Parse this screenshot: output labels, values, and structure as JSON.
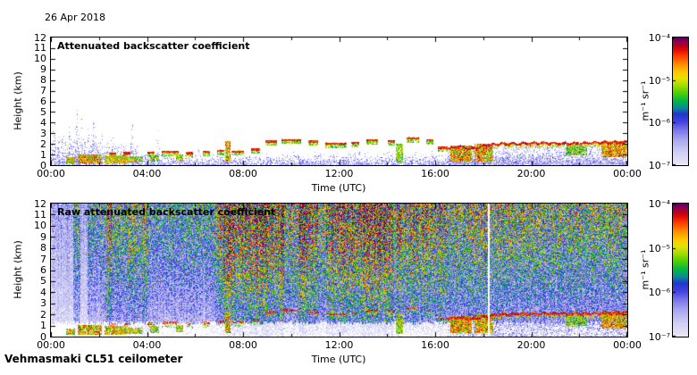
{
  "page": {
    "date": "26 Apr 2018",
    "footer": "Vehmasmaki CL51 ceilometer",
    "background": "#ffffff"
  },
  "panels": [
    {
      "title": "Attenuated backscatter coefficient"
    },
    {
      "title": "Raw attenuated backscatter coefficient"
    }
  ],
  "axes": {
    "xlabel": "Time (UTC)",
    "ylabel": "Height (km)",
    "x_ticks": [
      "00:00",
      "04:00",
      "08:00",
      "12:00",
      "16:00",
      "20:00",
      "00:00"
    ],
    "y_ticks": [
      "12",
      "11",
      "10",
      "9",
      "8",
      "7",
      "6",
      "5",
      "4",
      "3",
      "2",
      "1",
      "0"
    ],
    "x_range_hours": [
      0,
      24
    ],
    "y_range_km": [
      0,
      12
    ],
    "x_major_step_h": 4,
    "x_minor_step_h": 2
  },
  "colorbar": {
    "unit": "m⁻¹ sr⁻¹",
    "tick_labels": [
      "10⁻⁴",
      "10⁻⁵",
      "10⁻⁶",
      "10⁻⁷"
    ],
    "scale": "log10",
    "value_range": [
      1e-07,
      0.0001
    ],
    "gradient": [
      [
        0.0,
        "#eae8f8"
      ],
      [
        0.1,
        "#d0cef4"
      ],
      [
        0.2,
        "#a8a6ee"
      ],
      [
        0.28,
        "#7472e8"
      ],
      [
        0.34,
        "#4242e2"
      ],
      [
        0.4,
        "#2038cc"
      ],
      [
        0.45,
        "#0a8c96"
      ],
      [
        0.5,
        "#00b44a"
      ],
      [
        0.57,
        "#52d200"
      ],
      [
        0.63,
        "#aadc00"
      ],
      [
        0.68,
        "#e6e200"
      ],
      [
        0.73,
        "#ffc800"
      ],
      [
        0.79,
        "#ff9000"
      ],
      [
        0.85,
        "#ff4600"
      ],
      [
        0.9,
        "#e60e00"
      ],
      [
        0.94,
        "#b4001e"
      ],
      [
        0.97,
        "#8c0050"
      ],
      [
        1.0,
        "#5e0062"
      ]
    ]
  },
  "chart_data": [
    {
      "type": "heatmap",
      "title": "Attenuated backscatter coefficient",
      "xlabel": "Time (UTC)",
      "ylabel": "Height (km)",
      "x_range_hours": [
        0,
        24
      ],
      "y_range_km": [
        0,
        12
      ],
      "z_unit": "m-1 sr-1",
      "z_scale": "log10",
      "z_range": [
        1e-07,
        0.0001
      ],
      "background_value": "white below 1e-7",
      "near_surface_noise_top_km": [
        [
          0,
          2.6
        ],
        [
          2,
          2.6
        ],
        [
          4,
          1.05
        ],
        [
          24,
          1.05
        ]
      ],
      "noise_spikes": [
        [
          0.15,
          4.2
        ],
        [
          0.45,
          3.4
        ],
        [
          0.75,
          5.2
        ],
        [
          1.05,
          6.0
        ],
        [
          1.25,
          4.6
        ],
        [
          1.55,
          4.0
        ],
        [
          1.75,
          5.4
        ],
        [
          2.05,
          3.2
        ],
        [
          2.45,
          2.6
        ],
        [
          3.35,
          5.0
        ],
        [
          3.55,
          3.0
        ],
        [
          4.45,
          3.3
        ],
        [
          5.05,
          2.1
        ],
        [
          6.1,
          2.3
        ],
        [
          7.3,
          2.5
        ]
      ],
      "bl_blobs": [
        [
          0.6,
          1.0,
          0.1,
          0.7,
          0.45,
          0.9
        ],
        [
          1.1,
          2.1,
          0.1,
          1.0,
          0.5,
          0.95
        ],
        [
          2.2,
          3.1,
          0.15,
          0.9,
          0.5,
          0.9
        ],
        [
          3.1,
          3.8,
          0.2,
          0.8,
          0.45,
          0.85
        ],
        [
          4.1,
          4.5,
          0.3,
          0.9,
          0.4,
          0.8
        ],
        [
          5.2,
          5.5,
          0.4,
          1.0,
          0.4,
          0.8
        ],
        [
          7.25,
          7.45,
          0.3,
          2.2,
          0.5,
          0.95
        ],
        [
          14.35,
          14.65,
          0.2,
          2.0,
          0.45,
          0.75
        ],
        [
          16.6,
          17.5,
          0.3,
          1.8,
          0.5,
          0.95
        ],
        [
          17.6,
          18.4,
          0.3,
          2.0,
          0.5,
          0.95
        ],
        [
          21.4,
          22.3,
          0.9,
          1.9,
          0.4,
          0.75
        ],
        [
          22.9,
          24.0,
          0.7,
          2.2,
          0.55,
          0.95
        ]
      ],
      "cloud_dashes": [
        [
          2.4,
          2.7,
          1.05
        ],
        [
          3.0,
          3.3,
          1.1
        ],
        [
          4.0,
          4.3,
          1.15
        ],
        [
          4.6,
          5.3,
          1.2
        ],
        [
          5.6,
          5.9,
          1.1
        ],
        [
          6.3,
          6.6,
          1.2
        ],
        [
          6.9,
          7.2,
          1.3
        ],
        [
          7.5,
          8.0,
          1.25
        ],
        [
          8.3,
          8.7,
          1.45
        ],
        [
          8.9,
          9.4,
          2.2
        ],
        [
          9.6,
          10.4,
          2.35
        ],
        [
          10.7,
          11.1,
          2.2
        ],
        [
          11.4,
          12.3,
          2.0
        ],
        [
          12.5,
          12.8,
          2.05
        ],
        [
          13.1,
          13.6,
          2.3
        ],
        [
          14.0,
          14.3,
          2.25
        ],
        [
          14.8,
          15.3,
          2.5
        ],
        [
          15.6,
          15.9,
          2.3
        ],
        [
          16.1,
          16.5,
          1.6
        ]
      ],
      "cloud_layer_line": [
        [
          16.5,
          1.55
        ],
        [
          17.0,
          1.7
        ],
        [
          17.4,
          1.5
        ],
        [
          18.0,
          1.75
        ],
        [
          18.6,
          1.95
        ],
        [
          19.5,
          2.0
        ],
        [
          20.5,
          2.05
        ],
        [
          21.5,
          2.0
        ],
        [
          22.5,
          2.05
        ],
        [
          23.2,
          2.1
        ],
        [
          24,
          2.15
        ]
      ]
    },
    {
      "type": "heatmap",
      "title": "Raw attenuated backscatter coefficient",
      "xlabel": "Time (UTC)",
      "ylabel": "Height (km)",
      "x_range_hours": [
        0,
        24
      ],
      "y_range_km": [
        0,
        12
      ],
      "z_unit": "m-1 sr-1",
      "z_scale": "log10",
      "z_range": [
        1e-07,
        0.0001
      ],
      "noise_profile": [
        [
          0,
          0.9,
          0.22
        ],
        [
          0.9,
          1.2,
          0.45
        ],
        [
          1.2,
          1.5,
          0.2
        ],
        [
          1.5,
          2.3,
          0.42
        ],
        [
          2.3,
          2.55,
          0.66
        ],
        [
          2.55,
          3.1,
          0.5
        ],
        [
          3.1,
          4.0,
          0.58
        ],
        [
          4.0,
          6.8,
          0.44
        ],
        [
          6.8,
          7.15,
          0.62
        ],
        [
          7.15,
          9.7,
          0.85
        ],
        [
          9.7,
          10.3,
          0.6
        ],
        [
          10.3,
          11.1,
          0.82
        ],
        [
          11.1,
          11.45,
          0.6
        ],
        [
          11.45,
          14.2,
          0.84
        ],
        [
          14.2,
          16.5,
          0.68
        ],
        [
          16.5,
          20.0,
          0.6
        ],
        [
          20.0,
          24.01,
          0.56
        ]
      ],
      "noise_height_gain": [
        0.3,
        0.7
      ],
      "clean_band_top_km": 1.2,
      "gap_times": [
        18.2
      ],
      "bl_blobs": [
        [
          0.6,
          1.0,
          0.1,
          0.7,
          0.45,
          0.9
        ],
        [
          1.1,
          2.1,
          0.1,
          1.0,
          0.5,
          0.95
        ],
        [
          2.2,
          3.1,
          0.15,
          0.9,
          0.5,
          0.9
        ],
        [
          3.1,
          3.8,
          0.2,
          0.8,
          0.45,
          0.85
        ],
        [
          4.1,
          4.5,
          0.3,
          0.9,
          0.4,
          0.8
        ],
        [
          5.2,
          5.5,
          0.4,
          1.0,
          0.4,
          0.8
        ],
        [
          7.25,
          7.45,
          0.3,
          2.2,
          0.5,
          0.95
        ],
        [
          14.35,
          14.65,
          0.2,
          2.0,
          0.45,
          0.75
        ],
        [
          16.6,
          17.5,
          0.3,
          1.8,
          0.5,
          0.95
        ],
        [
          17.6,
          18.4,
          0.3,
          2.0,
          0.5,
          0.95
        ],
        [
          21.4,
          22.3,
          0.9,
          1.9,
          0.4,
          0.75
        ],
        [
          22.9,
          24.0,
          0.7,
          2.2,
          0.55,
          0.95
        ]
      ],
      "cloud_dashes": [
        [
          2.4,
          2.7,
          1.05
        ],
        [
          3.0,
          3.3,
          1.1
        ],
        [
          4.0,
          4.3,
          1.15
        ],
        [
          4.6,
          5.3,
          1.2
        ],
        [
          5.6,
          5.9,
          1.1
        ],
        [
          6.3,
          6.6,
          1.2
        ],
        [
          6.9,
          7.2,
          1.3
        ],
        [
          7.5,
          8.0,
          1.25
        ],
        [
          8.3,
          8.7,
          1.45
        ],
        [
          8.9,
          9.4,
          2.2
        ],
        [
          9.6,
          10.4,
          2.35
        ],
        [
          10.7,
          11.1,
          2.2
        ],
        [
          11.4,
          12.3,
          2.0
        ],
        [
          12.5,
          12.8,
          2.05
        ],
        [
          13.1,
          13.6,
          2.3
        ],
        [
          14.0,
          14.3,
          2.25
        ],
        [
          14.8,
          15.3,
          2.5
        ],
        [
          15.6,
          15.9,
          2.3
        ],
        [
          16.1,
          16.5,
          1.6
        ]
      ],
      "cloud_layer_line": [
        [
          16.5,
          1.55
        ],
        [
          17.0,
          1.7
        ],
        [
          17.4,
          1.5
        ],
        [
          18.0,
          1.75
        ],
        [
          18.6,
          1.95
        ],
        [
          19.5,
          2.0
        ],
        [
          20.5,
          2.05
        ],
        [
          21.5,
          2.0
        ],
        [
          22.5,
          2.05
        ],
        [
          23.2,
          2.1
        ],
        [
          24,
          2.15
        ]
      ]
    }
  ]
}
